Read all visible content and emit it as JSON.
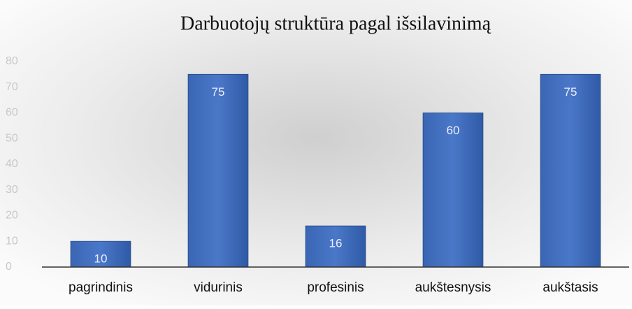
{
  "chart_data": {
    "type": "bar",
    "title": "Darbuotojų struktūra pagal išsilavinimą",
    "categories": [
      "pagrindinis",
      "vidurinis",
      "profesinis",
      "aukštesnysis",
      "aukštasis"
    ],
    "values": [
      10,
      75,
      16,
      60,
      75
    ],
    "color": "#4472c4",
    "ylim": [
      0,
      80
    ],
    "yticks": [
      0,
      10,
      20,
      30,
      40,
      50,
      60,
      70,
      80
    ],
    "grid": false,
    "data_labels": true
  }
}
